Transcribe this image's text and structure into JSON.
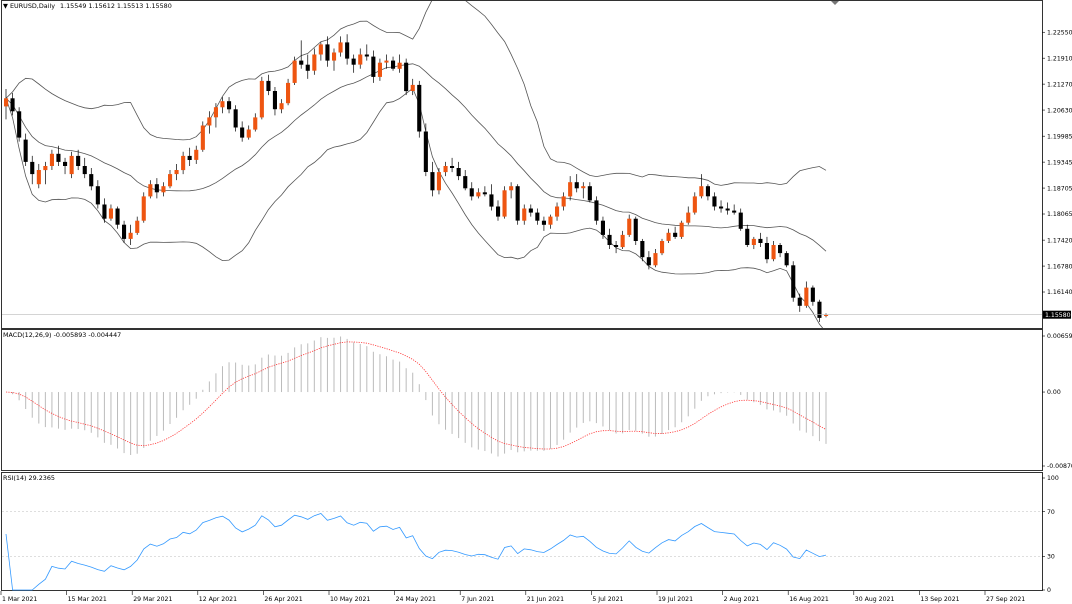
{
  "chart_data": {
    "type": "candlestick",
    "price_panel": {
      "symbol": "EURUSD,Daily",
      "ohlc_header": "1.15549 1.15612 1.15513 1.15580",
      "y_ticks": [
        "1.22550",
        "1.21910",
        "1.21270",
        "1.20630",
        "1.19985",
        "1.19345",
        "1.18705",
        "1.18065",
        "1.17420",
        "1.16780",
        "1.16140"
      ],
      "current_price": "1.15580",
      "ylim": [
        1.154,
        1.2305
      ],
      "bull_color": "#ee5511",
      "bear_color": "#000000",
      "band_color": "#555555",
      "candles": [
        [
          1.2072,
          1.2115,
          1.204,
          1.2092
        ],
        [
          1.2092,
          1.2105,
          1.205,
          1.206
        ],
        [
          1.206,
          1.207,
          1.1985,
          1.1995
        ],
        [
          1.199,
          1.2005,
          1.1925,
          1.1935
        ],
        [
          1.1935,
          1.195,
          1.188,
          1.1905
        ],
        [
          1.188,
          1.193,
          1.187,
          1.1915
        ],
        [
          1.1915,
          1.1935,
          1.188,
          1.1925
        ],
        [
          1.1925,
          1.1965,
          1.1915,
          1.1955
        ],
        [
          1.1955,
          1.1975,
          1.1925,
          1.1935
        ],
        [
          1.1935,
          1.1945,
          1.1905,
          1.1925
        ],
        [
          1.1905,
          1.196,
          1.1895,
          1.195
        ],
        [
          1.195,
          1.1965,
          1.1915,
          1.1925
        ],
        [
          1.1925,
          1.1945,
          1.1895,
          1.1905
        ],
        [
          1.1905,
          1.192,
          1.1865,
          1.1875
        ],
        [
          1.1875,
          1.189,
          1.182,
          1.183
        ],
        [
          1.183,
          1.1845,
          1.1785,
          1.1795
        ],
        [
          1.1795,
          1.183,
          1.179,
          1.182
        ],
        [
          1.182,
          1.1825,
          1.177,
          1.178
        ],
        [
          1.178,
          1.179,
          1.1735,
          1.1745
        ],
        [
          1.1745,
          1.178,
          1.173,
          1.176
        ],
        [
          1.176,
          1.18,
          1.1755,
          1.179
        ],
        [
          1.179,
          1.186,
          1.1785,
          1.185
        ],
        [
          1.185,
          1.189,
          1.1845,
          1.188
        ],
        [
          1.188,
          1.1895,
          1.1845,
          1.186
        ],
        [
          1.186,
          1.1885,
          1.185,
          1.1875
        ],
        [
          1.1875,
          1.1915,
          1.187,
          1.1905
        ],
        [
          1.1905,
          1.193,
          1.189,
          1.1915
        ],
        [
          1.1915,
          1.196,
          1.1905,
          1.195
        ],
        [
          1.195,
          1.197,
          1.1925,
          1.194
        ],
        [
          1.194,
          1.1975,
          1.193,
          1.1965
        ],
        [
          1.1965,
          1.2035,
          1.196,
          1.2025
        ],
        [
          1.2025,
          1.206,
          1.2005,
          1.2045
        ],
        [
          1.2045,
          1.208,
          1.202,
          1.207
        ],
        [
          1.207,
          1.2095,
          1.2055,
          1.2085
        ],
        [
          1.2085,
          1.2095,
          1.2055,
          1.2065
        ],
        [
          1.2065,
          1.2075,
          1.201,
          1.202
        ],
        [
          1.202,
          1.2035,
          1.1985,
          1.1995
        ],
        [
          1.1995,
          1.2025,
          1.199,
          1.2015
        ],
        [
          1.2015,
          1.2055,
          1.201,
          1.2045
        ],
        [
          1.2045,
          1.2145,
          1.204,
          1.2135
        ],
        [
          1.2135,
          1.215,
          1.21,
          1.211
        ],
        [
          1.211,
          1.212,
          1.205,
          1.2065
        ],
        [
          1.2065,
          1.209,
          1.2055,
          1.208
        ],
        [
          1.208,
          1.214,
          1.2075,
          1.213
        ],
        [
          1.213,
          1.2195,
          1.2125,
          1.2185
        ],
        [
          1.2185,
          1.2235,
          1.2165,
          1.2175
        ],
        [
          1.2175,
          1.22,
          1.214,
          1.216
        ],
        [
          1.216,
          1.2215,
          1.215,
          1.22
        ],
        [
          1.22,
          1.223,
          1.2185,
          1.2225
        ],
        [
          1.2225,
          1.2245,
          1.217,
          1.2185
        ],
        [
          1.2185,
          1.2215,
          1.216,
          1.2205
        ],
        [
          1.2205,
          1.2245,
          1.2195,
          1.223
        ],
        [
          1.223,
          1.225,
          1.2175,
          1.219
        ],
        [
          1.219,
          1.22,
          1.2155,
          1.2175
        ],
        [
          1.2175,
          1.2215,
          1.2165,
          1.22
        ],
        [
          1.22,
          1.2225,
          1.2185,
          1.2195
        ],
        [
          1.2195,
          1.221,
          1.213,
          1.2145
        ],
        [
          1.2145,
          1.219,
          1.2135,
          1.218
        ],
        [
          1.218,
          1.22,
          1.2165,
          1.2185
        ],
        [
          1.2185,
          1.2195,
          1.216,
          1.2165
        ],
        [
          1.2165,
          1.22,
          1.2155,
          1.218
        ],
        [
          1.218,
          1.219,
          1.21,
          1.211
        ],
        [
          1.211,
          1.214,
          1.21,
          1.2125
        ],
        [
          1.2125,
          1.2135,
          1.1995,
          1.201
        ],
        [
          1.201,
          1.203,
          1.19,
          1.191
        ],
        [
          1.191,
          1.1935,
          1.185,
          1.1865
        ],
        [
          1.1865,
          1.192,
          1.1855,
          1.191
        ],
        [
          1.191,
          1.1935,
          1.19,
          1.1925
        ],
        [
          1.1925,
          1.1945,
          1.191,
          1.192
        ],
        [
          1.192,
          1.1935,
          1.189,
          1.19
        ],
        [
          1.19,
          1.1915,
          1.1865,
          1.187
        ],
        [
          1.187,
          1.1885,
          1.184,
          1.185
        ],
        [
          1.185,
          1.187,
          1.1845,
          1.186
        ],
        [
          1.186,
          1.1875,
          1.185,
          1.1855
        ],
        [
          1.1855,
          1.188,
          1.1815,
          1.1825
        ],
        [
          1.1825,
          1.184,
          1.179,
          1.18
        ],
        [
          1.18,
          1.1875,
          1.1795,
          1.1865
        ],
        [
          1.1865,
          1.1885,
          1.1845,
          1.1875
        ],
        [
          1.1875,
          1.188,
          1.178,
          1.179
        ],
        [
          1.179,
          1.183,
          1.178,
          1.182
        ],
        [
          1.182,
          1.183,
          1.18,
          1.181
        ],
        [
          1.181,
          1.182,
          1.178,
          1.179
        ],
        [
          1.179,
          1.18,
          1.1765,
          1.178
        ],
        [
          1.178,
          1.1805,
          1.177,
          1.18
        ],
        [
          1.18,
          1.1835,
          1.179,
          1.1825
        ],
        [
          1.1825,
          1.186,
          1.1815,
          1.185
        ],
        [
          1.185,
          1.19,
          1.184,
          1.1885
        ],
        [
          1.1885,
          1.1905,
          1.186,
          1.187
        ],
        [
          1.187,
          1.1885,
          1.1845,
          1.1875
        ],
        [
          1.1875,
          1.1885,
          1.1835,
          1.184
        ],
        [
          1.184,
          1.185,
          1.178,
          1.179
        ],
        [
          1.179,
          1.18,
          1.1745,
          1.1755
        ],
        [
          1.1755,
          1.177,
          1.172,
          1.173
        ],
        [
          1.173,
          1.174,
          1.171,
          1.1725
        ],
        [
          1.1725,
          1.1765,
          1.172,
          1.1755
        ],
        [
          1.1755,
          1.1805,
          1.175,
          1.1795
        ],
        [
          1.1795,
          1.18,
          1.173,
          1.174
        ],
        [
          1.174,
          1.1745,
          1.169,
          1.17
        ],
        [
          1.17,
          1.1715,
          1.167,
          1.168
        ],
        [
          1.168,
          1.172,
          1.1675,
          1.171
        ],
        [
          1.171,
          1.1745,
          1.1705,
          1.174
        ],
        [
          1.174,
          1.177,
          1.1735,
          1.176
        ],
        [
          1.176,
          1.1775,
          1.1745,
          1.175
        ],
        [
          1.175,
          1.179,
          1.1745,
          1.1785
        ],
        [
          1.1785,
          1.1825,
          1.178,
          1.181
        ],
        [
          1.181,
          1.186,
          1.1805,
          1.185
        ],
        [
          1.185,
          1.1905,
          1.1845,
          1.1875
        ],
        [
          1.1875,
          1.188,
          1.184,
          1.185
        ],
        [
          1.185,
          1.186,
          1.1815,
          1.1825
        ],
        [
          1.1825,
          1.184,
          1.181,
          1.182
        ],
        [
          1.182,
          1.1835,
          1.1805,
          1.1815
        ],
        [
          1.1815,
          1.183,
          1.1805,
          1.181
        ],
        [
          1.181,
          1.182,
          1.1765,
          1.177
        ],
        [
          1.177,
          1.178,
          1.1725,
          1.173
        ],
        [
          1.173,
          1.175,
          1.172,
          1.1745
        ],
        [
          1.1745,
          1.176,
          1.1725,
          1.1735
        ],
        [
          1.1735,
          1.175,
          1.1685,
          1.1695
        ],
        [
          1.1695,
          1.174,
          1.169,
          1.173
        ],
        [
          1.173,
          1.1735,
          1.17,
          1.171
        ],
        [
          1.171,
          1.1715,
          1.1675,
          1.168
        ],
        [
          1.168,
          1.169,
          1.159,
          1.16
        ],
        [
          1.16,
          1.161,
          1.1565,
          1.158
        ],
        [
          1.158,
          1.164,
          1.1575,
          1.1625
        ],
        [
          1.1625,
          1.163,
          1.158,
          1.159
        ],
        [
          1.159,
          1.1595,
          1.154,
          1.155
        ],
        [
          1.15549,
          1.15612,
          1.15513,
          1.1558
        ]
      ]
    },
    "macd_panel": {
      "label": "MACD(12,26,9) -0.005893 -0.004447",
      "y_ticks": [
        "0.006595",
        "0.00",
        "-0.008704"
      ],
      "ylim": [
        -0.008704,
        0.006595
      ],
      "signal_color": "#ff3333",
      "histogram_color": "#bbbbbb"
    },
    "rsi_panel": {
      "label": "RSI(14) 29.2365",
      "y_ticks": [
        "100",
        "70",
        "30",
        "0"
      ],
      "ylim": [
        0,
        100
      ],
      "levels": [
        70,
        30
      ],
      "line_color": "#3399ff"
    },
    "x_ticks": [
      "1 Mar 2021",
      "15 Mar 2021",
      "29 Mar 2021",
      "12 Apr 2021",
      "26 Apr 2021",
      "10 May 2021",
      "24 May 2021",
      "7 Jun 2021",
      "21 Jun 2021",
      "5 Jul 2021",
      "19 Jul 2021",
      "2 Aug 2021",
      "16 Aug 2021",
      "30 Aug 2021",
      "13 Sep 2021",
      "27 Sep 2021"
    ]
  }
}
